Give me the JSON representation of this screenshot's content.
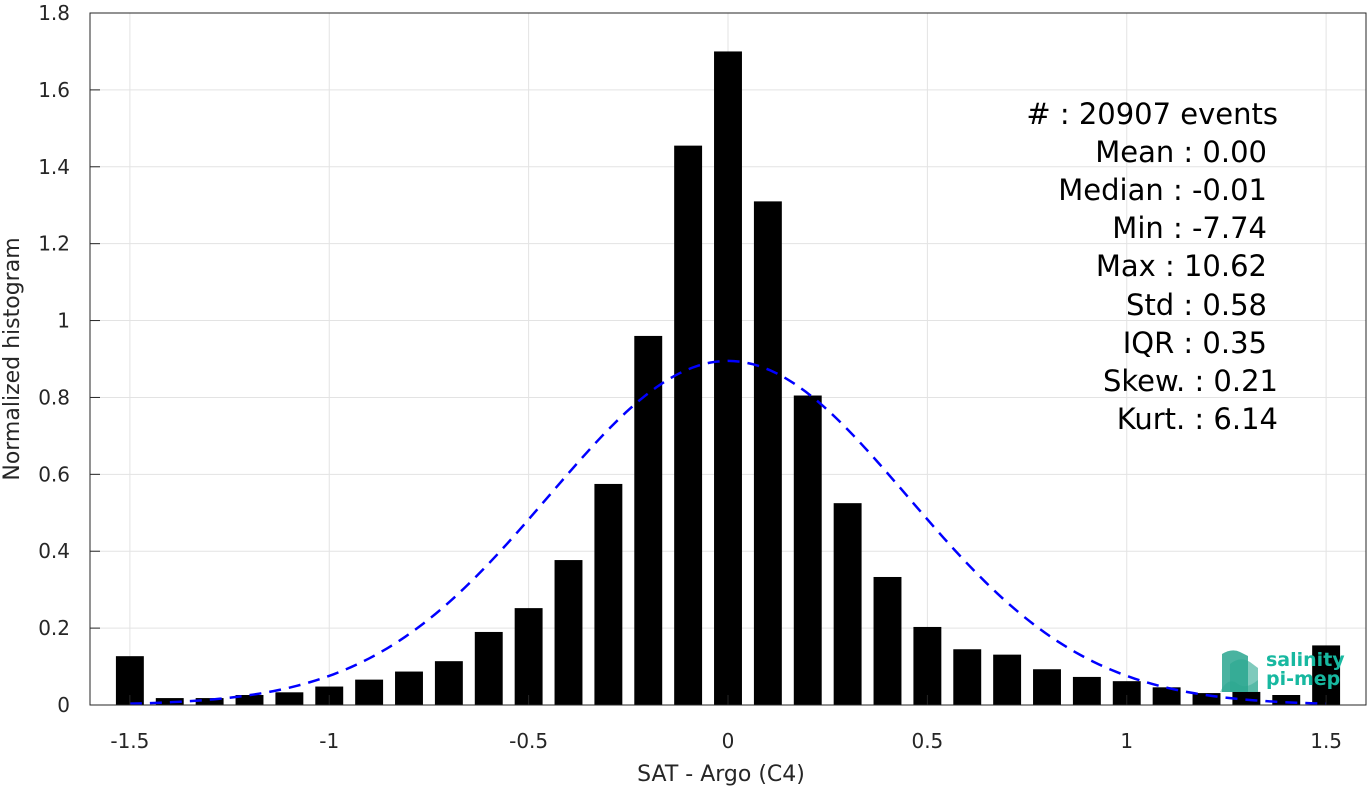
{
  "chart_data": {
    "type": "bar",
    "title": "",
    "xlabel": "SAT - Argo (C4)",
    "ylabel": "Normalized histogram",
    "xlim": [
      -1.6,
      1.6
    ],
    "ylim": [
      0,
      1.8
    ],
    "grid": true,
    "x_ticks": [
      -1.5,
      -1,
      -0.5,
      0,
      0.5,
      1,
      1.5
    ],
    "x_tick_labels": [
      "-1.5",
      "-1",
      "-0.5",
      "0",
      "0.5",
      "1",
      "1.5"
    ],
    "y_ticks": [
      0,
      0.2,
      0.4,
      0.6,
      0.8,
      1,
      1.2,
      1.4,
      1.6,
      1.8
    ],
    "y_tick_labels": [
      "0",
      "0.2",
      "0.4",
      "0.6",
      "0.8",
      "1",
      "1.2",
      "1.4",
      "1.6",
      "1.8"
    ],
    "bar_width": 0.07,
    "bar_color": "#000000",
    "bars": {
      "x": [
        -1.5,
        -1.4,
        -1.3,
        -1.2,
        -1.1,
        -1.0,
        -0.9,
        -0.8,
        -0.7,
        -0.6,
        -0.5,
        -0.4,
        -0.3,
        -0.2,
        -0.1,
        0.0,
        0.1,
        0.2,
        0.3,
        0.4,
        0.5,
        0.6,
        0.7,
        0.8,
        0.9,
        1.0,
        1.1,
        1.2,
        1.3,
        1.4,
        1.5
      ],
      "values": [
        0.127,
        0.018,
        0.018,
        0.026,
        0.033,
        0.048,
        0.066,
        0.087,
        0.114,
        0.19,
        0.252,
        0.377,
        0.575,
        0.96,
        1.455,
        1.7,
        1.31,
        0.805,
        0.525,
        0.333,
        0.203,
        0.145,
        0.131,
        0.093,
        0.073,
        0.062,
        0.046,
        0.031,
        0.034,
        0.026,
        0.155
      ]
    },
    "fit_curve": {
      "kind": "gaussian",
      "mean": 0.0,
      "std": 0.45,
      "peak": 0.895,
      "x_range": [
        -1.5,
        1.5
      ],
      "color": "#0000ff",
      "style": "dashed"
    },
    "annotations": [
      {
        "label": "#  : 20907 events"
      },
      {
        "label": "Mean : 0.00"
      },
      {
        "label": "Median : -0.01"
      },
      {
        "label": "Min : -7.74"
      },
      {
        "label": "Max : 10.62"
      },
      {
        "label": "Std : 0.58"
      },
      {
        "label": "IQR : 0.35"
      },
      {
        "label": "Skew. : 0.21"
      },
      {
        "label": "Kurt. : 6.14"
      }
    ]
  },
  "logo": {
    "line1": "salinity",
    "line2": "pi-mep",
    "text_color": "#17b8a0",
    "shape_color": "#2aa68f"
  }
}
